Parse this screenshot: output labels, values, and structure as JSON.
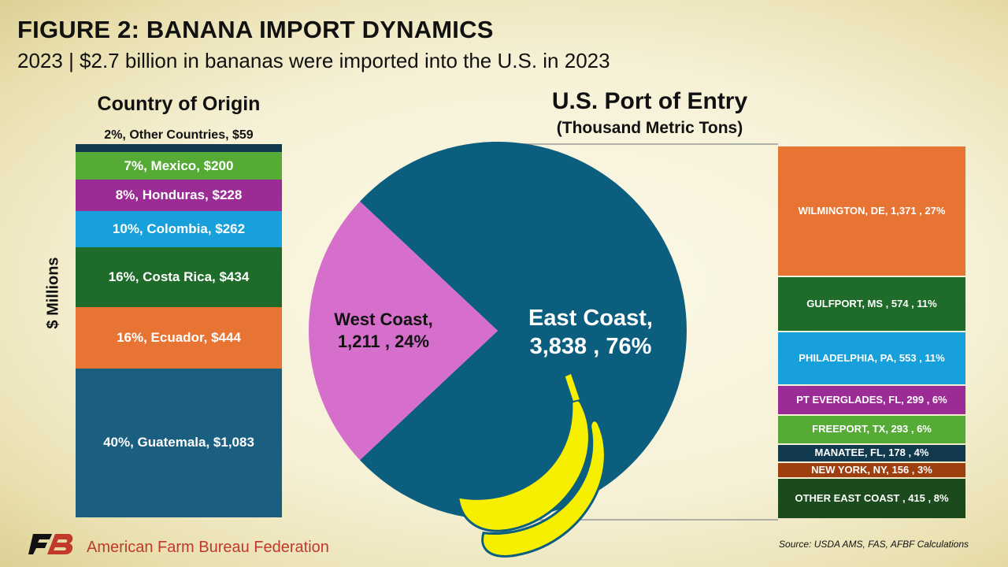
{
  "title": "FIGURE 2: BANANA IMPORT DYNAMICS",
  "subtitle": "2023 | $2.7 billion in bananas were imported into the U.S. in 2023",
  "source": "Source: USDA AMS, FAS, AFBF Calculations",
  "footer": {
    "org": "American Farm Bureau Federation",
    "logo_icon": "afbf-logo-icon"
  },
  "chart_data": [
    {
      "type": "bar",
      "subtype": "100% stacked",
      "title": "Country of Origin",
      "ylabel": "$ Millions",
      "series": [
        {
          "name": "Guatemala",
          "value": 1083,
          "percent": 40,
          "label": "40%, Guatemala,  $1,083",
          "color": "#1a5e80"
        },
        {
          "name": "Ecuador",
          "value": 444,
          "percent": 16,
          "label": "16%, Ecuador,  $444",
          "color": "#e87433"
        },
        {
          "name": "Costa Rica",
          "value": 434,
          "percent": 16,
          "label": "16%, Costa Rica,  $434",
          "color": "#1e6b2a"
        },
        {
          "name": "Colombia",
          "value": 262,
          "percent": 10,
          "label": "10%, Colombia,  $262",
          "color": "#17a0db"
        },
        {
          "name": "Honduras",
          "value": 228,
          "percent": 8,
          "label": "8%, Honduras,  $228",
          "color": "#9b2c96"
        },
        {
          "name": "Mexico",
          "value": 200,
          "percent": 7,
          "label": "7%, Mexico,  $200",
          "color": "#55ab35"
        },
        {
          "name": "Other Countries",
          "value": 59,
          "percent": 2,
          "label": "2%, Other Countries,  $59",
          "color": "#113a4f"
        }
      ]
    },
    {
      "type": "pie",
      "title": "U.S. Port of Entry",
      "subtitle": "(Thousand Metric Tons)",
      "slices": [
        {
          "name": "East Coast",
          "value": 3838,
          "percent": 76,
          "label_line1": "East Coast,",
          "label_line2": "3,838 , 76%",
          "color": "#0b5e7e"
        },
        {
          "name": "West Coast",
          "value": 1211,
          "percent": 24,
          "label_line1": "West Coast,",
          "label_line2": "1,211 , 24%",
          "color": "#d66fcb"
        }
      ]
    },
    {
      "type": "bar",
      "subtype": "100% stacked breakdown of East Coast",
      "series": [
        {
          "name": "WILMINGTON, DE",
          "value": 1371,
          "percent": 27,
          "label": "WILMINGTON, DE,  1,371 , 27%",
          "color": "#e87433"
        },
        {
          "name": "GULFPORT, MS",
          "value": 574,
          "percent": 11,
          "label": "GULFPORT, MS ,  574 , 11%",
          "color": "#1e6b2a"
        },
        {
          "name": "PHILADELPHIA, PA",
          "value": 553,
          "percent": 11,
          "label": "PHILADELPHIA, PA,  553 , 11%",
          "color": "#17a0db"
        },
        {
          "name": "PT EVERGLADES, FL",
          "value": 299,
          "percent": 6,
          "label": "PT EVERGLADES, FL,  299 , 6%",
          "color": "#9b2c96"
        },
        {
          "name": "FREEPORT, TX",
          "value": 293,
          "percent": 6,
          "label": "FREEPORT, TX,  293 , 6%",
          "color": "#55ab35"
        },
        {
          "name": "MANATEE, FL",
          "value": 178,
          "percent": 4,
          "label": "MANATEE, FL,  178 , 4%",
          "color": "#113a4f"
        },
        {
          "name": "NEW YORK, NY",
          "value": 156,
          "percent": 3,
          "label": "NEW YORK, NY,  156 , 3%",
          "color": "#9e3f10"
        },
        {
          "name": "OTHER EAST COAST",
          "value": 415,
          "percent": 8,
          "label": "OTHER EAST COAST ,  415 , 8%",
          "color": "#1b4a1c"
        }
      ]
    }
  ],
  "colors": {
    "banana": "#f6ef00",
    "banana_stroke": "#0b5e7e"
  }
}
